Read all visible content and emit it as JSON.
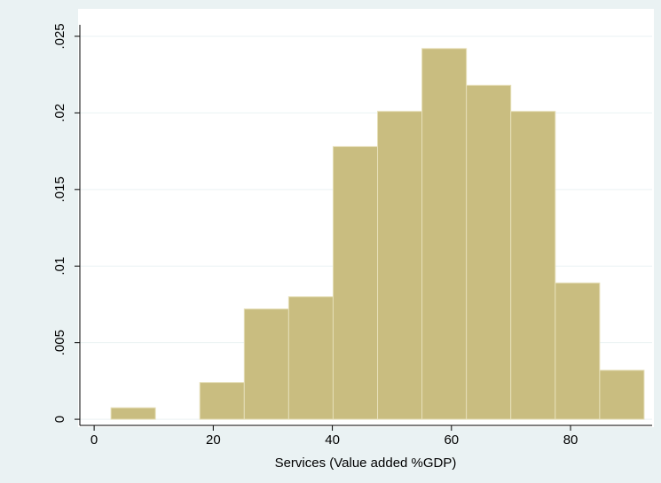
{
  "chart_data": {
    "type": "histogram",
    "x_label": "Services (Value added %GDP)",
    "bins": [
      2.83,
      10.29,
      17.75,
      25.21,
      32.67,
      40.13,
      47.59,
      55.05,
      62.51,
      69.97,
      77.43,
      84.89,
      92.35
    ],
    "values": [
      0.00075,
      0,
      0.0024,
      0.0072,
      0.008,
      0.0178,
      0.0201,
      0.0242,
      0.0218,
      0.0201,
      0.0089,
      0.0032
    ],
    "color": "#c9bd80",
    "xlim": [
      -2.4,
      93.7
    ],
    "xticks": [
      0,
      20,
      40,
      60,
      80
    ],
    "ylim": [
      -0.0004,
      0.02575
    ],
    "yticks": [
      0,
      {
        "value": 0.005,
        "label": ".005"
      },
      {
        "value": 0.01,
        "label": ".01"
      },
      {
        "value": 0.015,
        "label": ".015"
      },
      {
        "value": 0.02,
        "label": ".02"
      },
      {
        "value": 0.025,
        "label": ".025"
      }
    ],
    "grid": true
  }
}
